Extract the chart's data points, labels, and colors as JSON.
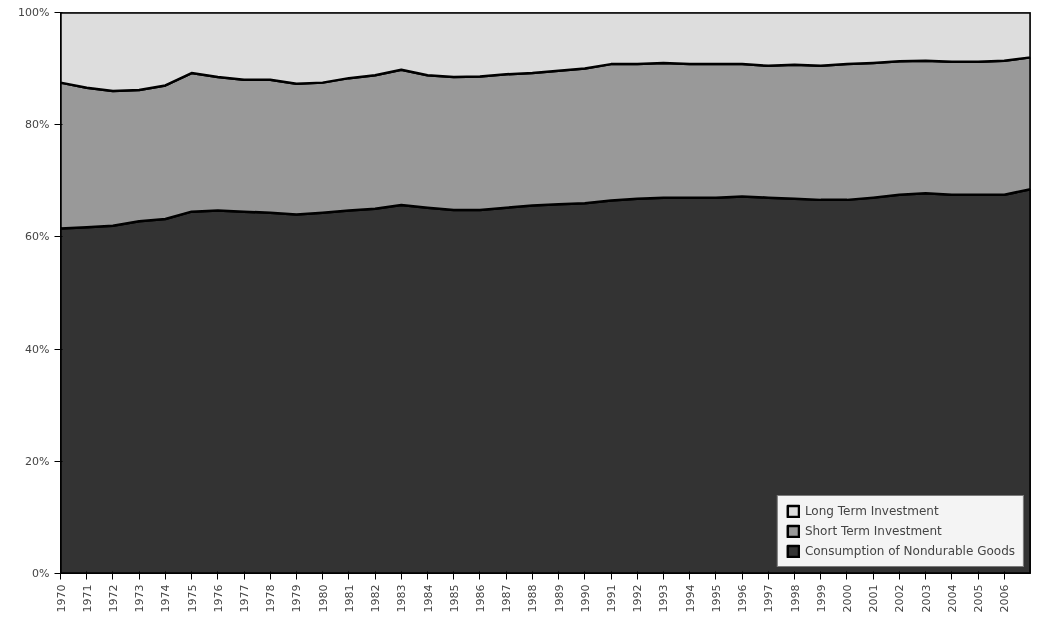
{
  "chart_data": {
    "type": "area",
    "stacked": true,
    "x": [
      1970,
      1971,
      1972,
      1973,
      1974,
      1975,
      1976,
      1977,
      1978,
      1979,
      1980,
      1981,
      1982,
      1983,
      1984,
      1985,
      1986,
      1987,
      1988,
      1989,
      1990,
      1991,
      1992,
      1993,
      1994,
      1995,
      1996,
      1997,
      1998,
      1999,
      2000,
      2001,
      2002,
      2003,
      2004,
      2005,
      2006,
      2007
    ],
    "series": [
      {
        "name": "Consumption of Nondurable Goods",
        "color": "#333333",
        "values": [
          61.5,
          61.7,
          62.0,
          62.8,
          63.2,
          64.5,
          64.7,
          64.5,
          64.3,
          64.0,
          64.3,
          64.7,
          65.0,
          65.7,
          65.2,
          64.8,
          64.8,
          65.2,
          65.6,
          65.8,
          66.0,
          66.5,
          66.8,
          67.0,
          67.0,
          67.0,
          67.2,
          67.0,
          66.8,
          66.6,
          66.6,
          67.0,
          67.5,
          67.8,
          67.5,
          67.5,
          67.5,
          68.5
        ]
      },
      {
        "name": "Short Term Investment",
        "color": "#999999",
        "values": [
          26.0,
          24.9,
          24.0,
          23.4,
          23.8,
          24.7,
          23.8,
          23.5,
          23.7,
          23.3,
          23.2,
          23.6,
          23.8,
          24.1,
          23.6,
          23.7,
          23.8,
          23.8,
          23.6,
          23.8,
          24.0,
          24.3,
          24.0,
          24.0,
          23.8,
          23.8,
          23.6,
          23.5,
          23.9,
          23.9,
          24.2,
          24.0,
          23.8,
          23.6,
          23.7,
          23.7,
          23.9,
          23.5
        ]
      },
      {
        "name": "Long Term Investment",
        "color": "#dddddd",
        "values": [
          12.5,
          13.4,
          14.0,
          13.8,
          13.0,
          10.8,
          11.5,
          12.0,
          12.0,
          12.7,
          12.5,
          11.7,
          11.2,
          10.2,
          11.2,
          11.5,
          11.4,
          11.0,
          10.8,
          10.4,
          10.0,
          9.2,
          9.2,
          9.0,
          9.2,
          9.2,
          9.2,
          9.5,
          9.3,
          9.5,
          9.2,
          9.0,
          8.7,
          8.6,
          8.8,
          8.8,
          8.6,
          8.0
        ]
      }
    ],
    "xlim": [
      1970,
      2007
    ],
    "xticks": [
      1970,
      1971,
      1972,
      1973,
      1974,
      1975,
      1976,
      1977,
      1978,
      1979,
      1980,
      1981,
      1982,
      1983,
      1984,
      1985,
      1986,
      1987,
      1988,
      1989,
      1990,
      1991,
      1992,
      1993,
      1994,
      1995,
      1996,
      1997,
      1998,
      1999,
      2000,
      2001,
      2002,
      2003,
      2004,
      2005,
      2006
    ],
    "ylim": [
      0,
      100
    ],
    "yticks": [
      {
        "value": 0,
        "label": "0%"
      },
      {
        "value": 20,
        "label": "20%"
      },
      {
        "value": 40,
        "label": "40%"
      },
      {
        "value": 60,
        "label": "60%"
      },
      {
        "value": 80,
        "label": "80%"
      },
      {
        "value": 100,
        "label": "100%"
      }
    ],
    "grid": false,
    "legend": "bottom right"
  }
}
